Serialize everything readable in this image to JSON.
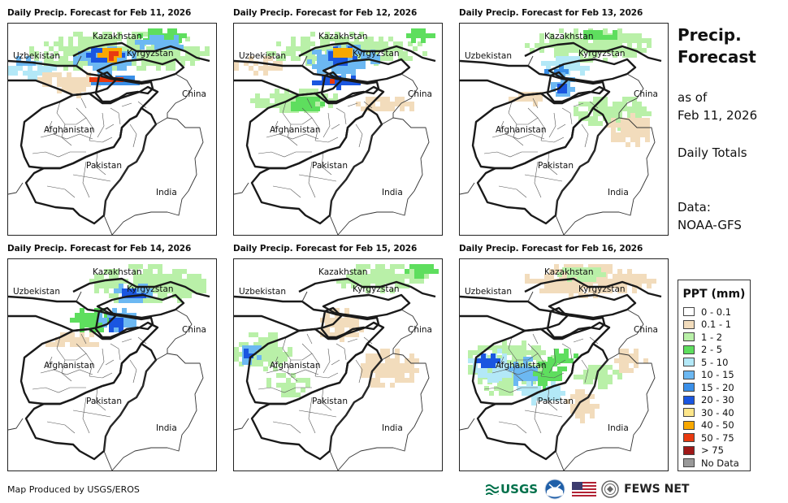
{
  "panels": [
    {
      "title": "Daily Precip. Forecast for Feb 11, 2026"
    },
    {
      "title": "Daily Precip. Forecast for Feb 12, 2026"
    },
    {
      "title": "Daily Precip. Forecast for Feb 13, 2026"
    },
    {
      "title": "Daily Precip. Forecast for Feb 14, 2026"
    },
    {
      "title": "Daily Precip. Forecast for Feb 15, 2026"
    },
    {
      "title": "Daily Precip. Forecast for Feb 16, 2026"
    }
  ],
  "map_labels": {
    "kazakhstan": "Kazakhstan",
    "uzbekistan": "Uzbekistan",
    "kyrgyzstan": "Kyrgyzstan",
    "china": "China",
    "afghanistan": "Afghanistan",
    "pakistan": "Pakistan",
    "india": "India"
  },
  "side": {
    "title_line1": "Precip.",
    "title_line2": "Forecast",
    "as_of": "as of",
    "date": "Feb 11, 2026",
    "totals": "Daily Totals",
    "data_label": "Data:",
    "data_source": "NOAA-GFS"
  },
  "legend": {
    "title": "PPT (mm)",
    "items": [
      {
        "label": "0 - 0.1",
        "color": "#ffffff"
      },
      {
        "label": "0.1 - 1",
        "color": "#f2dcbc"
      },
      {
        "label": "1 - 2",
        "color": "#b9f0a8"
      },
      {
        "label": "2 - 5",
        "color": "#5ede5e"
      },
      {
        "label": "5 - 10",
        "color": "#b3e8f7"
      },
      {
        "label": "10 - 15",
        "color": "#6cb8f2"
      },
      {
        "label": "15 - 20",
        "color": "#3a8fe8"
      },
      {
        "label": "20 - 30",
        "color": "#1a56e0"
      },
      {
        "label": "30 - 40",
        "color": "#fde68a"
      },
      {
        "label": "40 - 50",
        "color": "#f8a800"
      },
      {
        "label": "50 - 75",
        "color": "#e83a10"
      },
      {
        "label": "> 75",
        "color": "#a01818"
      },
      {
        "label": "No Data",
        "color": "#999999"
      }
    ]
  },
  "footer": {
    "credit": "Map Produced by USGS/EROS",
    "usgs_logo": "USGS",
    "fews_logo": "FEWS NET"
  }
}
